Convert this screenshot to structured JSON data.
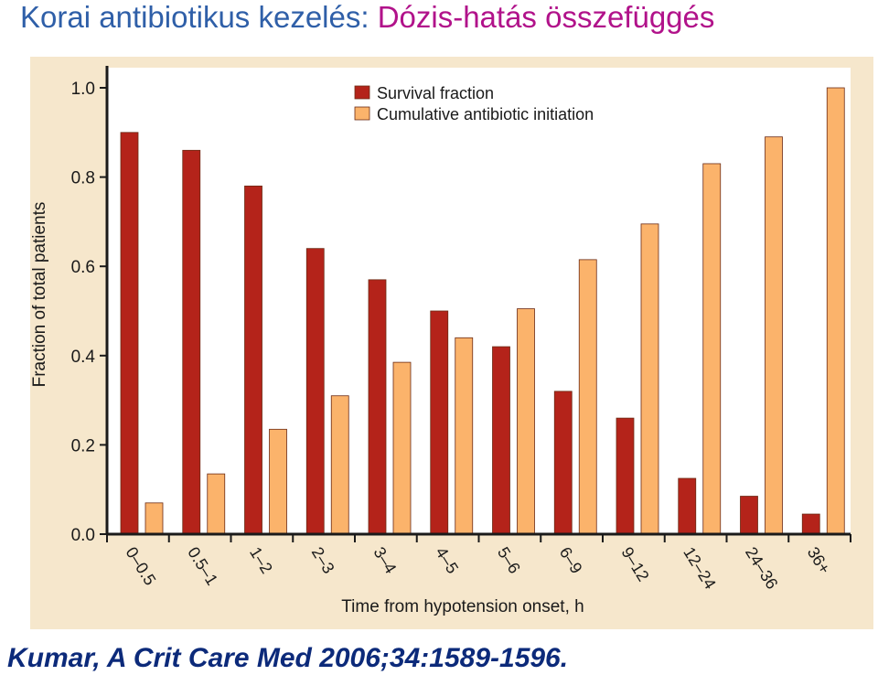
{
  "header": {
    "title_part1": "Korai antibiotikus kezelés: ",
    "title_part2": "Dózis-hatás összefüggés"
  },
  "citation": "Kumar, A Crit Care Med 2006;34:1589-1596.",
  "colors": {
    "title_blue": "#2f5fa8",
    "title_magenta": "#b1128a",
    "survival": "#b4231a",
    "cumulative": "#fbb36b",
    "panel_background": "#f6e7cc",
    "citation": "#0c2a7a"
  },
  "chart_data": {
    "type": "bar",
    "xlabel": "Time from hypotension onset, h",
    "ylabel": "Fraction of total patients",
    "ylim": [
      0,
      1.0
    ],
    "yticks": [
      "0.0",
      "0.2",
      "0.4",
      "0.6",
      "0.8",
      "1.0"
    ],
    "grid": false,
    "legend_position": "top-left",
    "categories": [
      "0–0.5",
      "0.5–1",
      "1–2",
      "2–3",
      "3–4",
      "4–5",
      "5–6",
      "6–9",
      "9–12",
      "12–24",
      "24–36",
      "36+"
    ],
    "series": [
      {
        "name": "Survival fraction",
        "values": [
          0.9,
          0.86,
          0.78,
          0.64,
          0.57,
          0.5,
          0.42,
          0.32,
          0.26,
          0.125,
          0.085,
          0.045
        ]
      },
      {
        "name": "Cumulative antibiotic initiation",
        "values": [
          0.07,
          0.135,
          0.235,
          0.31,
          0.385,
          0.44,
          0.505,
          0.615,
          0.695,
          0.83,
          0.89,
          1.0
        ]
      }
    ]
  }
}
